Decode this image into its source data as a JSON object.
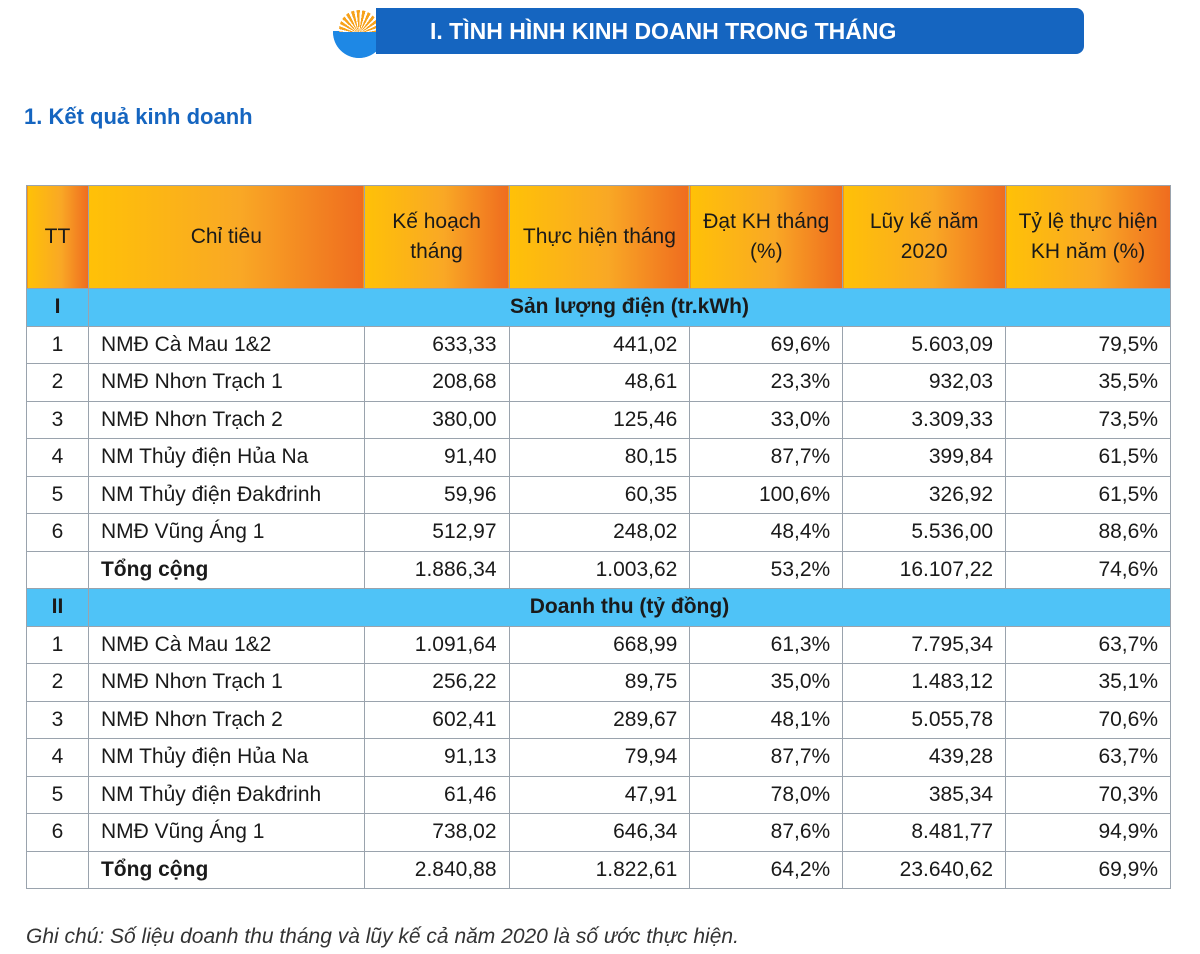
{
  "header": {
    "title": "I. TÌNH HÌNH KINH DOANH TRONG THÁNG",
    "logo": "sun-over-sea-logo"
  },
  "subtitle": "1. Kết quả kinh doanh",
  "table": {
    "columns": [
      "TT",
      "Chỉ tiêu",
      "Kế hoạch tháng",
      "Thực hiện tháng",
      "Đạt KH tháng (%)",
      "Lũy kế năm 2020",
      "Tỷ lệ thực hiện KH năm (%)"
    ],
    "sections": [
      {
        "id": "I",
        "title": "Sản lượng điện (tr.kWh)",
        "rows": [
          [
            "1",
            "NMĐ Cà Mau 1&2",
            "633,33",
            "441,02",
            "69,6%",
            "5.603,09",
            "79,5%"
          ],
          [
            "2",
            "NMĐ Nhơn Trạch 1",
            "208,68",
            "48,61",
            "23,3%",
            "932,03",
            "35,5%"
          ],
          [
            "3",
            "NMĐ Nhơn Trạch 2",
            "380,00",
            "125,46",
            "33,0%",
            "3.309,33",
            "73,5%"
          ],
          [
            "4",
            "NM Thủy điện Hủa Na",
            "91,40",
            "80,15",
            "87,7%",
            "399,84",
            "61,5%"
          ],
          [
            "5",
            "NM Thủy điện Đakđrinh",
            "59,96",
            "60,35",
            "100,6%",
            "326,92",
            "61,5%"
          ],
          [
            "6",
            "NMĐ Vũng Áng 1",
            "512,97",
            "248,02",
            "48,4%",
            "5.536,00",
            "88,6%"
          ],
          [
            "",
            "Tổng cộng",
            "1.886,34",
            "1.003,62",
            "53,2%",
            "16.107,22",
            "74,6%"
          ]
        ]
      },
      {
        "id": "II",
        "title": "Doanh thu (tỷ đồng)",
        "rows": [
          [
            "1",
            "NMĐ Cà Mau 1&2",
            "1.091,64",
            "668,99",
            "61,3%",
            "7.795,34",
            "63,7%"
          ],
          [
            "2",
            "NMĐ Nhơn Trạch 1",
            "256,22",
            "89,75",
            "35,0%",
            "1.483,12",
            "35,1%"
          ],
          [
            "3",
            "NMĐ Nhơn Trạch 2",
            "602,41",
            "289,67",
            "48,1%",
            "5.055,78",
            "70,6%"
          ],
          [
            "4",
            "NM Thủy điện Hủa Na",
            "91,13",
            "79,94",
            "87,7%",
            "439,28",
            "63,7%"
          ],
          [
            "5",
            "NM Thủy điện Đakđrinh",
            "61,46",
            "47,91",
            "78,0%",
            "385,34",
            "70,3%"
          ],
          [
            "6",
            "NMĐ Vũng Áng 1",
            "738,02",
            "646,34",
            "87,6%",
            "8.481,77",
            "94,9%"
          ],
          [
            "",
            "Tổng cộng",
            "2.840,88",
            "1.822,61",
            "64,2%",
            "23.640,62",
            "69,9%"
          ]
        ]
      }
    ]
  },
  "note": "Ghi chú: Số liệu doanh thu tháng và lũy kế cả năm 2020 là số ước thực hiện."
}
